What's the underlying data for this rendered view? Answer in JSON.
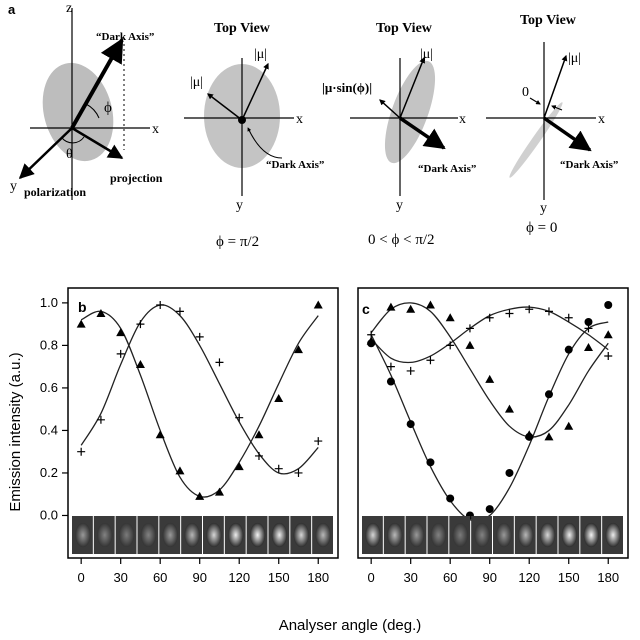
{
  "panel_a": {
    "label": "a",
    "sketch1": {
      "z": "z",
      "x": "x",
      "y": "y",
      "dark_axis": "“Dark Axis”",
      "phi": "ϕ",
      "theta": "θ",
      "polarization": "polarization",
      "projection": "projection"
    },
    "sketch2": {
      "title": "Top View",
      "mu1": "|μ|",
      "mu2": "|μ|",
      "x": "x",
      "y": "y",
      "dark_axis": "“Dark Axis”",
      "caption": "ϕ = π/2"
    },
    "sketch3": {
      "title": "Top View",
      "mu_sin": "|μ·sin(ϕ)|",
      "mu": "|μ|",
      "x": "x",
      "y": "y",
      "dark_axis": "“Dark Axis”",
      "caption": "0 < ϕ < π/2"
    },
    "sketch4": {
      "title": "Top View",
      "zero": "0",
      "mu": "|μ|",
      "x": "x",
      "y": "y",
      "dark_axis": "“Dark Axis”",
      "caption": "ϕ = 0"
    }
  },
  "shared_axes": {
    "ylabel": "Emission intensity (a.u.)",
    "xlabel": "Analyser angle (deg.)"
  },
  "chart_data": [
    {
      "type": "scatter",
      "panel_label": "b",
      "xlim": [
        -10,
        195
      ],
      "ylim": [
        -0.2,
        1.07
      ],
      "yticks": [
        0.0,
        0.2,
        0.4,
        0.6,
        0.8,
        1.0
      ],
      "xticks": [
        0,
        30,
        60,
        90,
        120,
        150,
        180
      ],
      "series": [
        {
          "marker": "triangle",
          "x": [
            0,
            15,
            30,
            45,
            60,
            75,
            90,
            105,
            120,
            135,
            150,
            165,
            180
          ],
          "y": [
            0.9,
            0.95,
            0.86,
            0.71,
            0.38,
            0.21,
            0.09,
            0.11,
            0.23,
            0.38,
            0.55,
            0.78,
            0.99
          ]
        },
        {
          "marker": "plus",
          "x": [
            0,
            15,
            30,
            45,
            60,
            75,
            90,
            105,
            120,
            135,
            150,
            165,
            180
          ],
          "y": [
            0.3,
            0.45,
            0.76,
            0.9,
            0.99,
            0.96,
            0.84,
            0.72,
            0.46,
            0.28,
            0.22,
            0.2,
            0.35
          ]
        },
        {
          "line": "fit",
          "x": [
            0,
            15,
            30,
            45,
            60,
            75,
            90,
            105,
            120,
            135,
            150,
            165,
            180
          ],
          "y": [
            0.92,
            0.96,
            0.88,
            0.66,
            0.4,
            0.18,
            0.09,
            0.12,
            0.25,
            0.42,
            0.62,
            0.81,
            0.94
          ]
        },
        {
          "line": "fit",
          "x": [
            0,
            15,
            30,
            45,
            60,
            75,
            90,
            105,
            120,
            135,
            150,
            165,
            180
          ],
          "y": [
            0.33,
            0.48,
            0.71,
            0.91,
            0.99,
            0.94,
            0.8,
            0.62,
            0.44,
            0.29,
            0.2,
            0.22,
            0.32
          ]
        }
      ]
    },
    {
      "type": "scatter",
      "panel_label": "c",
      "xlim": [
        -10,
        195
      ],
      "ylim": [
        -0.2,
        1.07
      ],
      "xticks": [
        0,
        30,
        60,
        90,
        120,
        150,
        180
      ],
      "series": [
        {
          "marker": "triangle",
          "x": [
            0,
            15,
            30,
            45,
            60,
            75,
            90,
            105,
            120,
            135,
            150,
            165,
            180
          ],
          "y": [
            0.82,
            0.98,
            0.97,
            0.99,
            0.93,
            0.8,
            0.64,
            0.5,
            0.38,
            0.37,
            0.42,
            0.79,
            0.85
          ]
        },
        {
          "marker": "plus",
          "x": [
            0,
            15,
            30,
            45,
            60,
            75,
            90,
            105,
            120,
            135,
            150,
            165,
            180
          ],
          "y": [
            0.85,
            0.7,
            0.68,
            0.73,
            0.8,
            0.88,
            0.93,
            0.95,
            0.97,
            0.96,
            0.93,
            0.88,
            0.75
          ]
        },
        {
          "marker": "circle",
          "x": [
            0,
            15,
            30,
            45,
            60,
            75,
            90,
            105,
            120,
            135,
            150,
            165,
            180
          ],
          "y": [
            0.81,
            0.63,
            0.43,
            0.25,
            0.08,
            0.0,
            0.03,
            0.2,
            0.37,
            0.57,
            0.78,
            0.91,
            0.99
          ]
        },
        {
          "line": "fit",
          "x": [
            0,
            15,
            30,
            45,
            60,
            75,
            90,
            105,
            120,
            135,
            150,
            165,
            180
          ],
          "y": [
            0.86,
            0.97,
            1.0,
            0.96,
            0.84,
            0.69,
            0.54,
            0.42,
            0.37,
            0.4,
            0.52,
            0.68,
            0.81
          ]
        },
        {
          "line": "fit",
          "x": [
            0,
            15,
            30,
            45,
            60,
            75,
            90,
            105,
            120,
            135,
            150,
            165,
            180
          ],
          "y": [
            0.83,
            0.74,
            0.72,
            0.75,
            0.81,
            0.88,
            0.94,
            0.97,
            0.98,
            0.96,
            0.91,
            0.85,
            0.78
          ]
        },
        {
          "line": "fit",
          "x": [
            0,
            15,
            30,
            45,
            60,
            75,
            90,
            105,
            120,
            135,
            150,
            165,
            180
          ],
          "y": [
            0.85,
            0.66,
            0.44,
            0.23,
            0.07,
            -0.02,
            0.0,
            0.13,
            0.33,
            0.56,
            0.76,
            0.88,
            0.91
          ]
        }
      ]
    }
  ]
}
